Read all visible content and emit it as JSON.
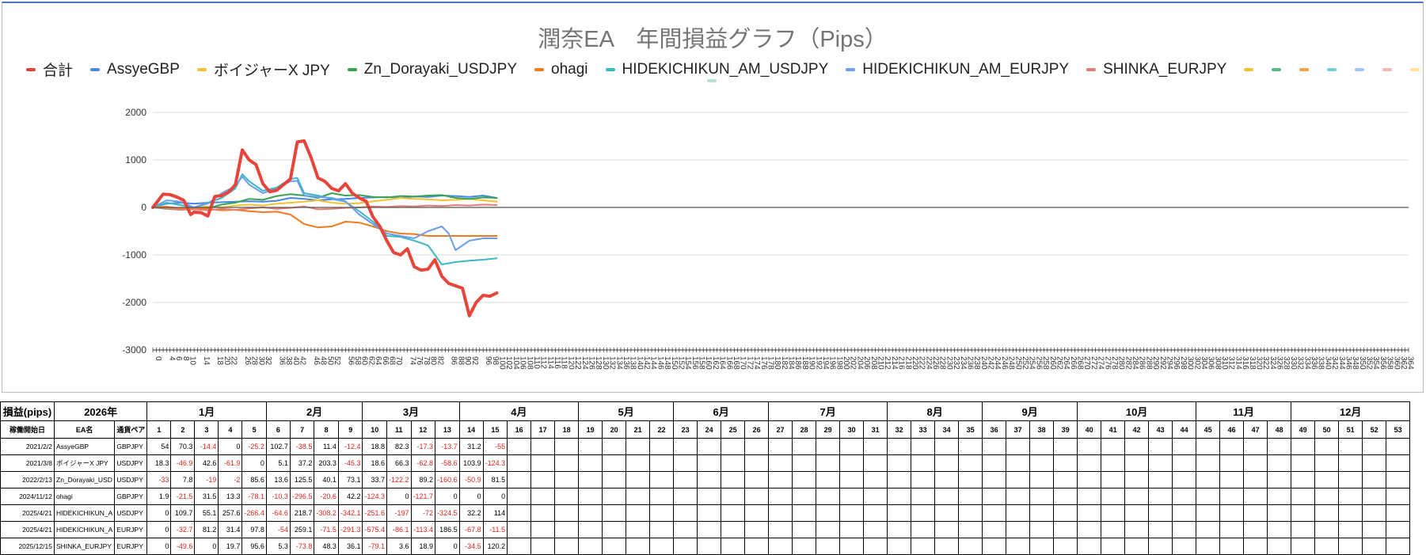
{
  "chart_data": {
    "type": "line",
    "title": "潤奈EA　年間損益グラフ（Pips）",
    "y_ticks": [
      2000,
      1000,
      0,
      -1000,
      -2000,
      -3000
    ],
    "ylim": [
      -3000,
      2000
    ],
    "x_tick_labels": [
      0,
      4,
      6,
      8,
      10,
      14,
      18,
      20,
      22,
      26,
      28,
      30,
      32,
      36,
      38,
      40,
      42,
      46,
      48,
      50,
      52,
      56,
      58,
      60,
      62,
      64,
      66,
      68,
      70,
      74,
      76,
      78,
      80,
      82,
      86,
      88,
      90,
      92,
      96,
      98,
      100,
      102,
      104,
      106,
      108,
      110,
      112,
      114,
      116,
      118,
      120,
      122,
      124,
      126,
      128,
      130,
      132,
      134,
      136,
      138,
      140,
      142,
      144,
      146,
      148,
      150,
      152,
      154,
      156,
      158,
      160,
      162,
      164,
      166,
      168,
      170,
      172,
      174,
      176,
      178,
      180,
      182,
      184,
      186,
      188,
      190,
      192,
      194,
      196,
      198,
      200,
      202,
      204,
      206,
      208,
      210,
      212,
      214,
      216,
      218,
      220,
      222,
      224,
      226,
      228,
      230,
      232,
      234,
      236,
      238,
      240,
      242,
      244,
      246,
      248,
      250,
      252,
      254,
      256,
      258,
      260,
      262,
      264,
      266,
      268,
      270,
      272,
      274,
      276,
      278,
      280,
      282,
      284,
      286,
      288,
      290,
      292,
      294,
      296,
      298,
      300,
      302,
      304,
      306,
      308,
      310,
      312,
      314,
      316,
      318,
      320,
      322,
      324,
      326,
      328,
      330,
      332,
      334,
      336,
      338,
      340,
      342,
      344,
      346,
      348,
      350,
      352,
      354,
      356,
      358,
      360,
      362,
      364
    ],
    "xlim": [
      0,
      365
    ],
    "legend_position": "top",
    "grid": true,
    "series": [
      {
        "name": "合計",
        "color": "#e8443a",
        "width": 4,
        "x": [
          0,
          3,
          5,
          7,
          9,
          11,
          12,
          14,
          16,
          18,
          20,
          22,
          24,
          26,
          28,
          30,
          32,
          34,
          36,
          38,
          40,
          42,
          44,
          46,
          48,
          50,
          52,
          54,
          56,
          58,
          60,
          62,
          64,
          66,
          68,
          70,
          72,
          74,
          76,
          78,
          80,
          82,
          84,
          86,
          88,
          90,
          92,
          94,
          96,
          98,
          100
        ],
        "y": [
          0,
          280,
          270,
          220,
          150,
          -150,
          -100,
          -110,
          -180,
          230,
          250,
          320,
          480,
          1210,
          1000,
          900,
          500,
          330,
          360,
          480,
          600,
          1380,
          1400,
          1050,
          620,
          550,
          400,
          350,
          500,
          300,
          200,
          130,
          -200,
          -400,
          -700,
          -950,
          -1000,
          -870,
          -1250,
          -1320,
          -1300,
          -1100,
          -1450,
          -1600,
          -1650,
          -1700,
          -2280,
          -2000,
          -1850,
          -1870,
          -1800
        ]
      },
      {
        "name": "AssyeGBP",
        "color": "#4a86e8",
        "width": 2,
        "x": [
          0,
          4,
          8,
          12,
          16,
          20,
          24,
          28,
          32,
          36,
          40,
          44,
          48,
          52,
          56,
          60,
          64,
          68,
          72,
          76,
          80,
          84,
          88,
          92,
          96,
          100
        ],
        "y": [
          0,
          80,
          100,
          80,
          100,
          110,
          120,
          130,
          120,
          140,
          200,
          180,
          150,
          170,
          180,
          200,
          210,
          220,
          200,
          230,
          220,
          250,
          240,
          220,
          250,
          200
        ]
      },
      {
        "name": "ボイジャーX JPY",
        "color": "#f1c232",
        "width": 2,
        "x": [
          0,
          4,
          8,
          12,
          16,
          20,
          24,
          28,
          32,
          36,
          40,
          44,
          48,
          52,
          56,
          60,
          64,
          68,
          72,
          76,
          80,
          84,
          88,
          92,
          96,
          100
        ],
        "y": [
          0,
          20,
          -30,
          -10,
          20,
          0,
          40,
          60,
          40,
          80,
          100,
          120,
          150,
          100,
          80,
          90,
          130,
          160,
          200,
          180,
          170,
          150,
          160,
          180,
          150,
          120
        ]
      },
      {
        "name": "Zn_Dorayaki_USDJPY",
        "color": "#38a350",
        "width": 2,
        "x": [
          0,
          4,
          8,
          12,
          16,
          20,
          24,
          28,
          32,
          36,
          40,
          44,
          48,
          52,
          56,
          60,
          64,
          68,
          72,
          76,
          80,
          84,
          88,
          92,
          96,
          100
        ],
        "y": [
          0,
          -30,
          -50,
          0,
          -20,
          60,
          100,
          180,
          160,
          240,
          280,
          250,
          200,
          300,
          250,
          260,
          220,
          210,
          240,
          230,
          250,
          260,
          200,
          180,
          210,
          200
        ]
      },
      {
        "name": "ohagi",
        "color": "#f27a1e",
        "width": 2,
        "x": [
          0,
          4,
          8,
          12,
          16,
          20,
          24,
          28,
          32,
          36,
          40,
          44,
          48,
          52,
          56,
          60,
          64,
          68,
          72,
          76,
          80,
          84,
          88,
          92,
          96,
          100
        ],
        "y": [
          0,
          10,
          -20,
          -10,
          -30,
          -60,
          -50,
          -80,
          -100,
          -90,
          -150,
          -350,
          -420,
          -400,
          -300,
          -320,
          -400,
          -500,
          -550,
          -560,
          -600,
          -600,
          -600,
          -600,
          -600,
          -600
        ]
      },
      {
        "name": "HIDEKICHIKUN_AM_USDJPY",
        "color": "#3bb9c6",
        "width": 2,
        "x": [
          0,
          4,
          8,
          12,
          16,
          20,
          24,
          26,
          28,
          32,
          36,
          40,
          42,
          44,
          48,
          52,
          56,
          60,
          64,
          68,
          72,
          76,
          80,
          84,
          88,
          92,
          96,
          100
        ],
        "y": [
          0,
          100,
          50,
          0,
          100,
          200,
          400,
          700,
          550,
          350,
          420,
          600,
          620,
          300,
          250,
          180,
          120,
          -80,
          -300,
          -600,
          -620,
          -700,
          -800,
          -1200,
          -1150,
          -1120,
          -1100,
          -1070
        ]
      },
      {
        "name": "HIDEKICHIKUN_AM_EURJPY",
        "color": "#6d9eeb",
        "width": 2,
        "x": [
          0,
          4,
          8,
          12,
          16,
          20,
          24,
          26,
          28,
          32,
          36,
          40,
          42,
          44,
          48,
          52,
          56,
          60,
          64,
          68,
          72,
          76,
          80,
          84,
          86,
          88,
          92,
          96,
          100
        ],
        "y": [
          0,
          150,
          120,
          0,
          80,
          300,
          450,
          650,
          480,
          300,
          400,
          550,
          560,
          250,
          220,
          200,
          130,
          -150,
          -350,
          -550,
          -600,
          -650,
          -500,
          -400,
          -550,
          -900,
          -700,
          -650,
          -650
        ]
      },
      {
        "name": "SHINKA_EURJPY",
        "color": "#e67c73",
        "width": 2,
        "x": [
          0,
          4,
          8,
          12,
          16,
          20,
          24,
          28,
          32,
          36,
          40,
          44,
          48,
          52,
          56,
          60,
          64,
          68,
          72,
          76,
          80,
          84,
          88,
          92,
          96,
          100
        ],
        "y": [
          0,
          -20,
          -50,
          -40,
          -60,
          -30,
          -50,
          -20,
          0,
          -30,
          -10,
          20,
          -40,
          -30,
          -10,
          0,
          20,
          10,
          30,
          20,
          40,
          30,
          50,
          40,
          60,
          50
        ]
      }
    ]
  },
  "legend_extra_colors": [
    "#f1c232",
    "#57bb8a",
    "#f6a14c",
    "#76d0d8",
    "#a4c2f4",
    "#f4b7b2",
    "#ffe599"
  ],
  "legend_extra_row2": [
    "#b7e1cd"
  ],
  "colors": {
    "negative": "#e0261b",
    "grid": "#d9d9d9",
    "baseline": "#555555"
  },
  "table": {
    "corner_label": "損益(pips)",
    "year_label": "2026年",
    "col_start": "稼働開始日",
    "col_name": "EA名",
    "col_pair": "通貨ペア",
    "months": [
      {
        "label": "1月",
        "span": 5
      },
      {
        "label": "2月",
        "span": 4
      },
      {
        "label": "3月",
        "span": 4
      },
      {
        "label": "4月",
        "span": 5
      },
      {
        "label": "5月",
        "span": 4
      },
      {
        "label": "6月",
        "span": 4
      },
      {
        "label": "7月",
        "span": 5
      },
      {
        "label": "8月",
        "span": 4
      },
      {
        "label": "9月",
        "span": 4
      },
      {
        "label": "10月",
        "span": 5
      },
      {
        "label": "11月",
        "span": 4
      },
      {
        "label": "12月",
        "span": 5
      }
    ],
    "weeks": [
      "1",
      "2",
      "3",
      "4",
      "5",
      "6",
      "7",
      "8",
      "9",
      "10",
      "11",
      "12",
      "13",
      "14",
      "15",
      "16",
      "17",
      "18",
      "19",
      "20",
      "21",
      "22",
      "23",
      "24",
      "25",
      "26",
      "27",
      "28",
      "29",
      "30",
      "31",
      "32",
      "33",
      "34",
      "35",
      "36",
      "37",
      "38",
      "39",
      "40",
      "41",
      "42",
      "43",
      "44",
      "45",
      "46",
      "47",
      "48",
      "49",
      "50",
      "51",
      "52",
      "53"
    ],
    "rows": [
      {
        "start": "2021/2/2",
        "name": "AssyeGBP",
        "pair": "GBPJPY",
        "values": [
          "54",
          "70.3",
          "-14.4",
          "0",
          "-25.2",
          "102.7",
          "-38.5",
          "11.4",
          "-12.4",
          "18.8",
          "82.3",
          "-17.3",
          "-13.7",
          "31.2",
          "-55"
        ]
      },
      {
        "start": "2021/3/8",
        "name": "ボイジャーX JPY",
        "pair": "USDJPY",
        "values": [
          "18.3",
          "-46.9",
          "42.6",
          "-61.9",
          "0",
          "5.1",
          "37.2",
          "203.3",
          "-45.3",
          "18.6",
          "66.3",
          "-62.8",
          "-58.6",
          "103.9",
          "-124.3"
        ]
      },
      {
        "start": "2022/2/13",
        "name": "Zn_Dorayaki_USD",
        "pair": "USDJPY",
        "values": [
          "-33",
          "7.8",
          "-19",
          "-2",
          "85.6",
          "13.6",
          "125.5",
          "40.1",
          "73.1",
          "33.7",
          "-122.2",
          "89.2",
          "-160.6",
          "-50.9",
          "81.5"
        ]
      },
      {
        "start": "2024/11/12",
        "name": "ohagi",
        "pair": "GBPJPY",
        "values": [
          "1.9",
          "-21.5",
          "31.5",
          "13.3",
          "-78.1",
          "-10.3",
          "-296.5",
          "-20.6",
          "42.2",
          "-124.3",
          "0",
          "-121.7",
          "0",
          "0",
          "0"
        ]
      },
      {
        "start": "2025/4/21",
        "name": "HIDEKICHIKUN_A",
        "pair": "USDJPY",
        "values": [
          "0",
          "109.7",
          "55.1",
          "257.6",
          "-266.4",
          "-64.6",
          "218.7",
          "-308.2",
          "-342.1",
          "-251.6",
          "-197",
          "-72",
          "-324.5",
          "32.2",
          "114"
        ]
      },
      {
        "start": "2025/4/21",
        "name": "HIDEKICHIKUN_A",
        "pair": "EURJPY",
        "values": [
          "0",
          "-32.7",
          "81.2",
          "31.4",
          "97.8",
          "-54",
          "259.1",
          "-71.5",
          "-291.3",
          "-575.4",
          "-86.1",
          "-113.4",
          "186.5",
          "-67.8",
          "-11.5"
        ]
      },
      {
        "start": "2025/12/15",
        "name": "SHINKA_EURJPY",
        "pair": "EURJPY",
        "values": [
          "0",
          "-49.6",
          "0",
          "19.7",
          "95.6",
          "5.3",
          "-73.8",
          "48.3",
          "36.1",
          "-79.1",
          "3.6",
          "18.9",
          "0",
          "-34.5",
          "120.2"
        ]
      }
    ]
  }
}
